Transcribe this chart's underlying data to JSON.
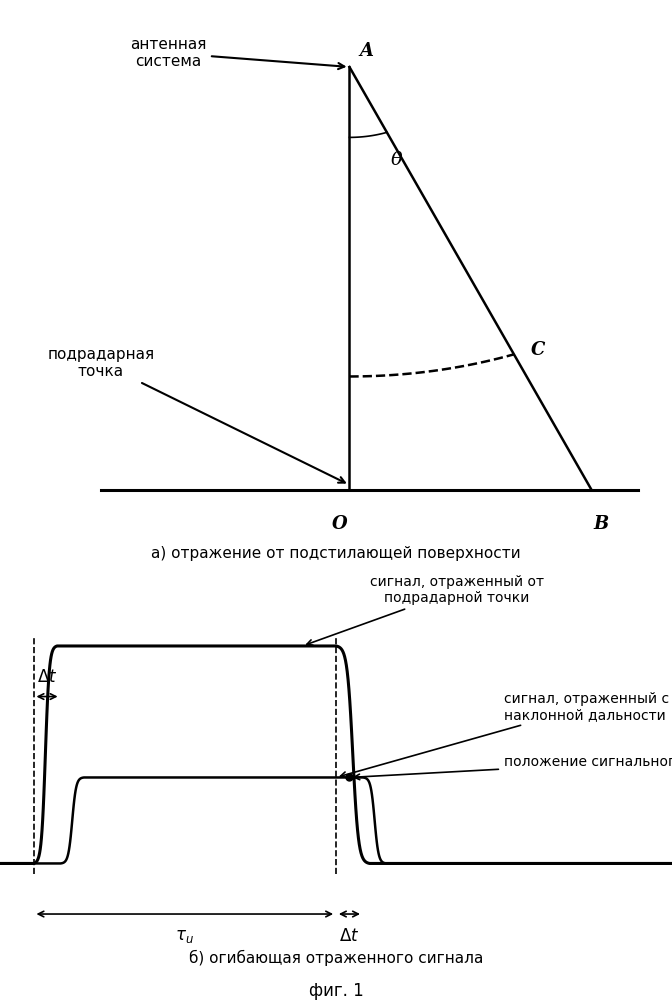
{
  "bg_color": "#ffffff",
  "line_color": "#000000",
  "fig_width": 6.72,
  "fig_height": 10.0,
  "dpi": 100,
  "top_panel": {
    "title": "а) отражение от подстилающей поверхности",
    "label_A": "A",
    "label_O": "O",
    "label_B": "B",
    "label_C": "C",
    "theta_label": "θ",
    "antenna_label": "антенная\nсистема",
    "subradarnaya_label": "подрадарная\nточка"
  },
  "bottom_panel": {
    "title": "б) огибающая отраженного сигнала",
    "fig_label": "фиг. 1",
    "signal1_label": "сигнал, отраженный от\nподрадарной точки",
    "signal2_label": "сигнал, отраженный с\nнаклонной дальности",
    "signal3_label": "положение сигнального сечения"
  }
}
